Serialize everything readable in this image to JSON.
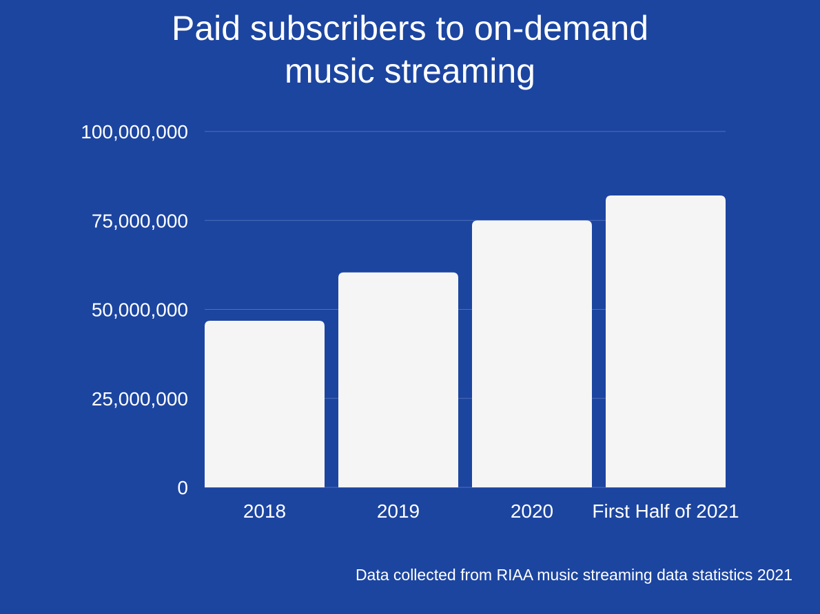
{
  "chart_data": {
    "type": "bar",
    "title": "Paid subscribers to on-demand music streaming",
    "categories": [
      "2018",
      "2019",
      "2020",
      "First Half of 2021"
    ],
    "values": [
      46800000,
      60400000,
      75000000,
      82000000
    ],
    "xlabel": "",
    "ylabel": "",
    "ylim": [
      0,
      100000000
    ],
    "yticks": [
      0,
      25000000,
      50000000,
      75000000,
      100000000
    ],
    "ytick_labels": [
      "0",
      "25,000,000",
      "50,000,000",
      "75,000,000",
      "100,000,000"
    ],
    "grid": true,
    "legend": "none",
    "source_note": "Data collected from RIAA music streaming data statistics 2021"
  },
  "colors": {
    "background": "#1c45a0",
    "bar": "#f5f5f5",
    "text": "#ffffff",
    "grid": "#4f6fba"
  }
}
